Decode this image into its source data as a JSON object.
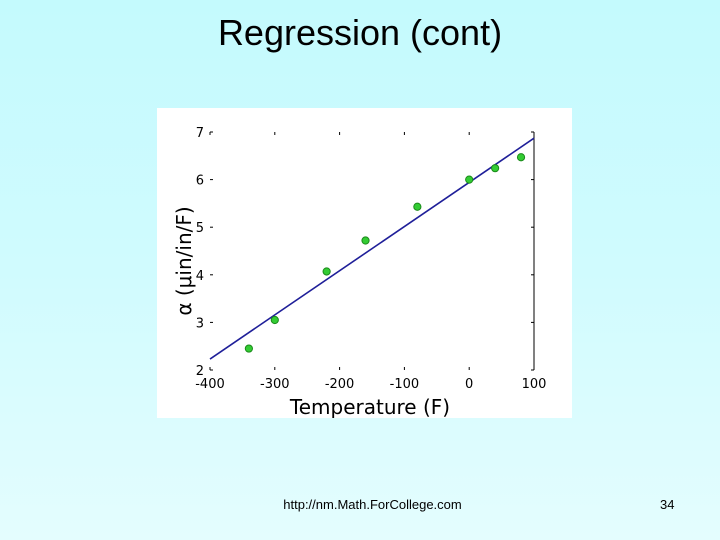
{
  "slide": {
    "title": "Regression (cont)",
    "footer_url": "http://nm.Math.ForCollege.com",
    "page_number": "34"
  },
  "chart_data": {
    "type": "scatter",
    "xlabel": "Temperature (F)",
    "ylabel": "α (μin/in/F)",
    "xlim": [
      -400,
      100
    ],
    "ylim": [
      2,
      7
    ],
    "x_ticks": [
      -400,
      -300,
      -200,
      -100,
      0,
      100
    ],
    "y_ticks": [
      2,
      3,
      4,
      5,
      6,
      7
    ],
    "x_tick_labels": [
      "-400",
      "-300",
      "-200",
      "-100",
      "0",
      "100"
    ],
    "y_tick_labels": [
      "2",
      "3",
      "4",
      "5",
      "6",
      "7"
    ],
    "points": {
      "x": [
        -340,
        -300,
        -220,
        -160,
        -80,
        0,
        40,
        80
      ],
      "y": [
        2.45,
        3.05,
        4.07,
        4.72,
        5.43,
        6.0,
        6.24,
        6.47
      ]
    },
    "fit_line": {
      "x": [
        -400,
        100
      ],
      "y": [
        2.23,
        6.87
      ]
    },
    "colors": {
      "points": "#33cc33",
      "point_edge": "#1a8a1a",
      "line": "#1f1f99"
    }
  }
}
